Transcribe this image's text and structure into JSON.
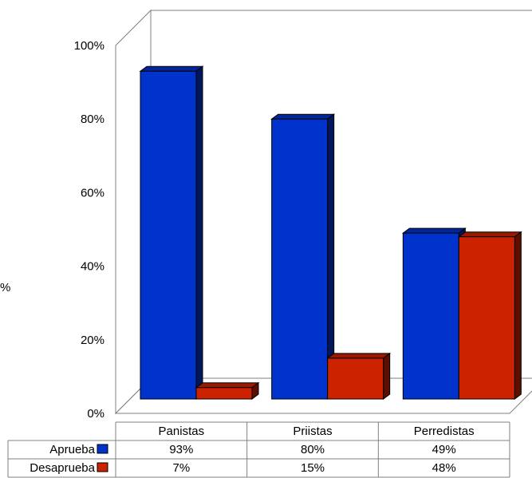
{
  "chart_data": {
    "type": "bar",
    "style": "3d-clustered-column-with-data-table",
    "categories": [
      "Panistas",
      "Priistas",
      "Perredistas"
    ],
    "series": [
      {
        "name": "Aprueba",
        "values": [
          93,
          80,
          49
        ],
        "labels": [
          "93%",
          "80%",
          "49%"
        ],
        "color": "#0033cc"
      },
      {
        "name": "Desaprueba",
        "values": [
          7,
          15,
          48
        ],
        "labels": [
          "7%",
          "15%",
          "48%"
        ],
        "color": "#cc2200"
      }
    ],
    "ylabel": "%",
    "yticks": [
      "0%",
      "20%",
      "40%",
      "60%",
      "80%",
      "100%"
    ],
    "ylim": [
      0,
      100
    ],
    "grid": false,
    "legend": "data-table-keys"
  }
}
